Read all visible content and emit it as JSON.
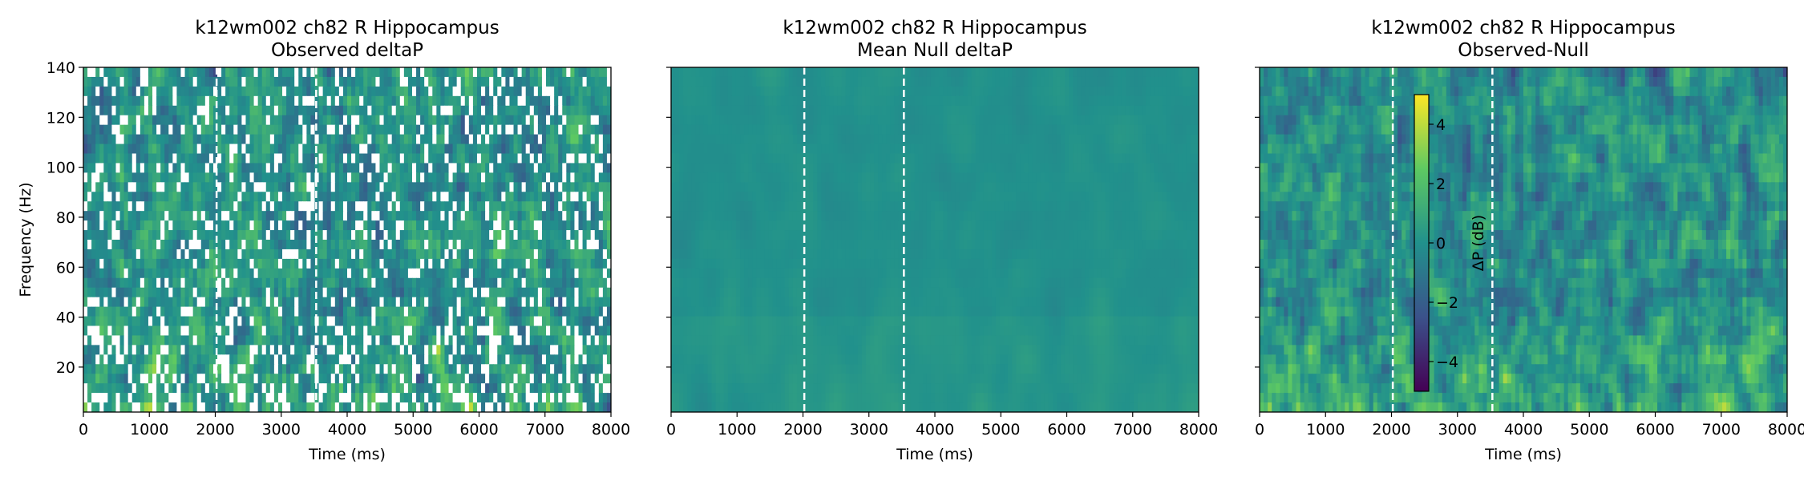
{
  "colors": {
    "colormap": [
      "#440154",
      "#3b528b",
      "#21918c",
      "#5ec962",
      "#fde725"
    ],
    "marker_line": "#ffffff",
    "axis": "#000000"
  },
  "chart_data": [
    {
      "type": "heatmap",
      "title": "k12wm002 ch82 R Hippocampus",
      "subtitle": "Observed deltaP",
      "xlabel": "Time (ms)",
      "ylabel": "Frequency (Hz)",
      "xlim": [
        0,
        8000
      ],
      "ylim": [
        2,
        140
      ],
      "xticks": [
        "0",
        "1000",
        "2000",
        "3000",
        "4000",
        "5000",
        "6000",
        "7000",
        "8000"
      ],
      "yticks": [
        "20",
        "40",
        "60",
        "80",
        "100",
        "120",
        "140"
      ],
      "vlines": [
        2020,
        3530
      ],
      "value_range": [
        -5,
        5
      ],
      "pattern": "observed_masked",
      "grid": false
    },
    {
      "type": "heatmap",
      "title": "k12wm002 ch82 R Hippocampus",
      "subtitle": "Mean Null deltaP",
      "xlabel": "Time (ms)",
      "ylabel": "",
      "xlim": [
        0,
        8000
      ],
      "ylim": [
        2,
        140
      ],
      "xticks": [
        "0",
        "1000",
        "2000",
        "3000",
        "4000",
        "5000",
        "6000",
        "7000",
        "8000"
      ],
      "yticks": [
        "20",
        "40",
        "60",
        "80",
        "100",
        "120",
        "140"
      ],
      "vlines": [
        2020,
        3530
      ],
      "value_range": [
        -5,
        5
      ],
      "pattern": "null_mean",
      "grid": false
    },
    {
      "type": "heatmap",
      "title": "k12wm002 ch82 R Hippocampus",
      "subtitle": "Observed-Null",
      "xlabel": "Time (ms)",
      "ylabel": "",
      "xlim": [
        0,
        8000
      ],
      "ylim": [
        2,
        140
      ],
      "xticks": [
        "0",
        "1000",
        "2000",
        "3000",
        "4000",
        "5000",
        "6000",
        "7000",
        "8000"
      ],
      "yticks": [
        "20",
        "40",
        "60",
        "80",
        "100",
        "120",
        "140"
      ],
      "vlines": [
        2020,
        3530
      ],
      "value_range": [
        -5,
        5
      ],
      "pattern": "difference",
      "grid": false,
      "colorbar": {
        "label": "ΔP (dB)",
        "range": [
          -5,
          5
        ],
        "ticks": [
          "−4",
          "−2",
          "0",
          "2",
          "4"
        ],
        "tick_values": [
          -4,
          -2,
          0,
          2,
          4
        ],
        "placement": "inside-left"
      }
    }
  ]
}
